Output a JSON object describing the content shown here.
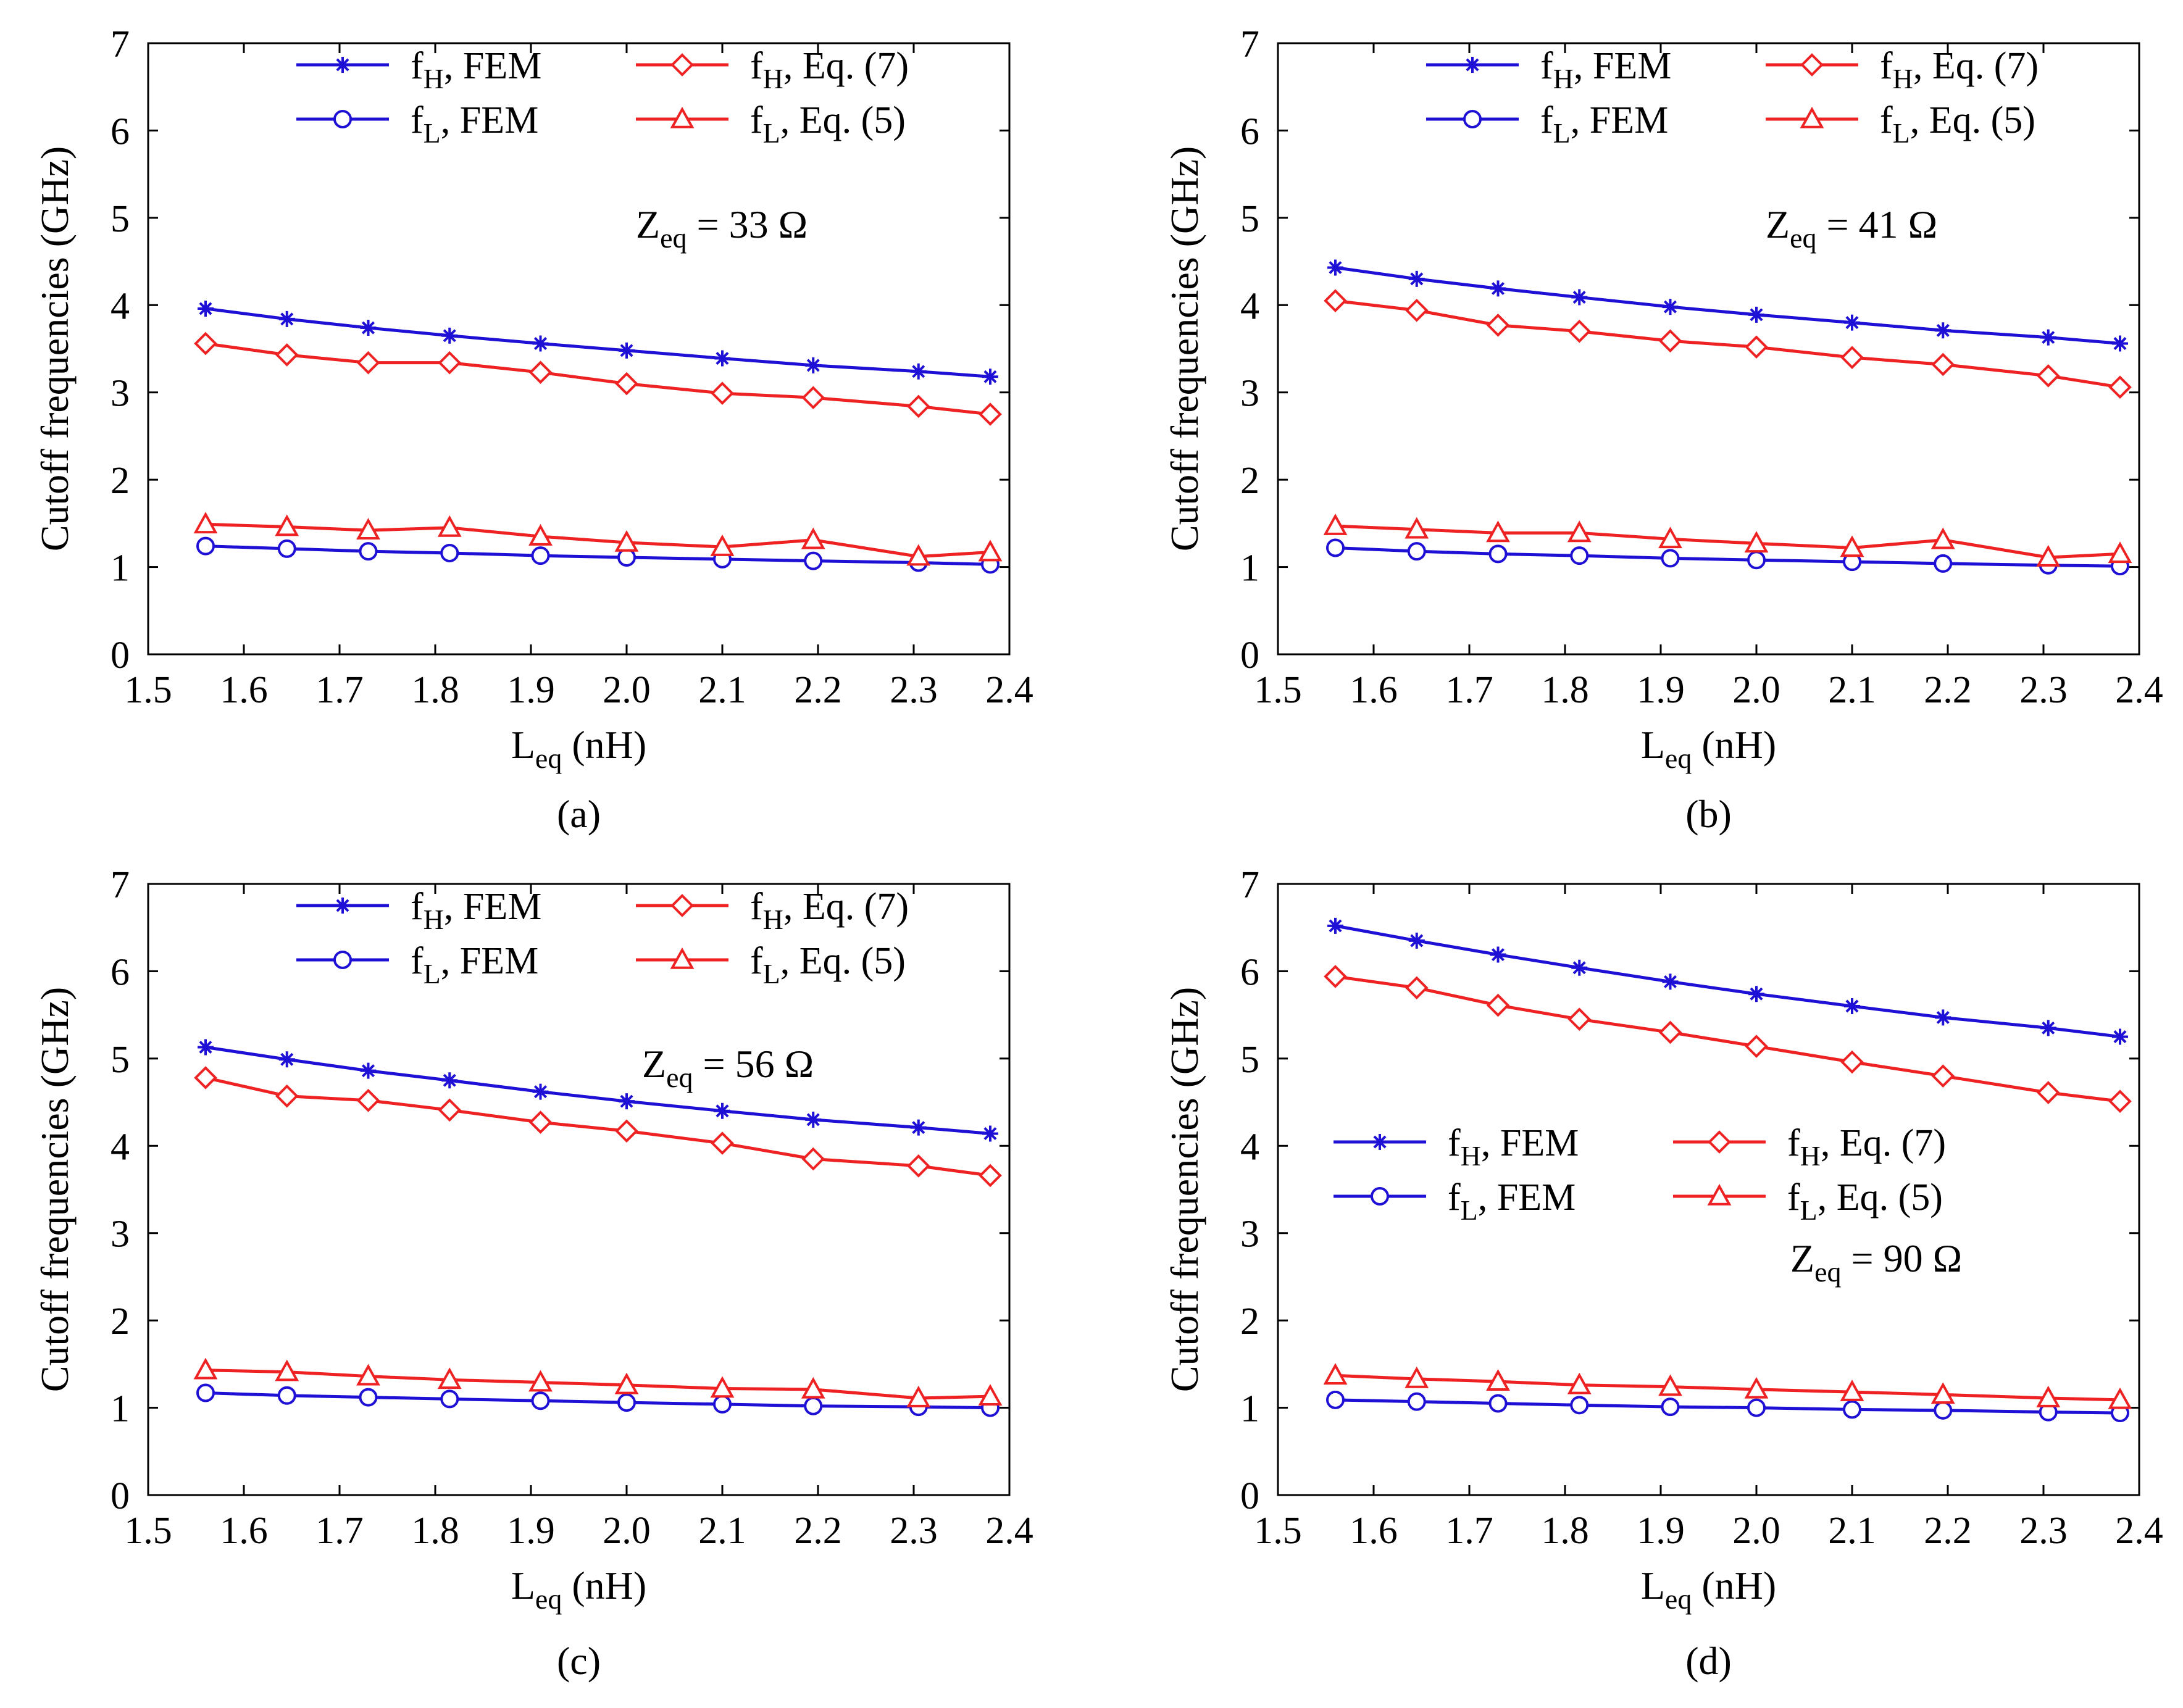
{
  "figure": {
    "ylabel": "Cutoff  frequencies (GHz)",
    "xlabel_main": "L",
    "xlabel_sub": "eq",
    "xlabel_unit": " (nH)"
  },
  "colors": {
    "fem": "#1f10d6",
    "eq": "#ee2222"
  },
  "legend_text": {
    "fH_FEM": {
      "a": "f",
      "b": "H",
      "c": ", FEM"
    },
    "fL_FEM": {
      "a": "f",
      "b": "L",
      "c": ", FEM"
    },
    "fH_Eq": {
      "a": "f",
      "b": "H",
      "c": ", Eq. (7)"
    },
    "fL_Eq": {
      "a": "f",
      "b": "L",
      "c": ", Eq. (5)"
    }
  },
  "chart_data": [
    {
      "type": "line",
      "panel": "a",
      "caption": "(a)",
      "annotation": {
        "a": "Z",
        "b": "eq",
        "c": " = 33 Ω"
      },
      "xlabel": "Leq (nH)",
      "ylabel": "Cutoff  frequencies (GHz)",
      "xlim": [
        1.5,
        2.4
      ],
      "ylim": [
        0,
        7
      ],
      "xticks": [
        "1.5",
        "1.6",
        "1.7",
        "1.8",
        "1.9",
        "2.0",
        "2.1",
        "2.2",
        "2.3",
        "2.4"
      ],
      "yticks": [
        "0",
        "1",
        "2",
        "3",
        "4",
        "5",
        "6",
        "7"
      ],
      "legend_position": "top",
      "x": [
        1.56,
        1.645,
        1.73,
        1.815,
        1.91,
        2.0,
        2.1,
        2.195,
        2.305,
        2.38
      ],
      "series": [
        {
          "name": "fH, FEM",
          "marker": "star",
          "values": [
            3.96,
            3.84,
            3.74,
            3.65,
            3.56,
            3.48,
            3.39,
            3.31,
            3.24,
            3.18
          ]
        },
        {
          "name": "fL, FEM",
          "marker": "circle",
          "values": [
            1.24,
            1.21,
            1.18,
            1.16,
            1.13,
            1.11,
            1.09,
            1.07,
            1.05,
            1.03
          ]
        },
        {
          "name": "fH, Eq. (7)",
          "marker": "diamond",
          "values": [
            3.56,
            3.43,
            3.34,
            3.34,
            3.23,
            3.1,
            2.99,
            2.94,
            2.84,
            2.75
          ]
        },
        {
          "name": "fL, Eq. (5)",
          "marker": "triangle",
          "values": [
            1.49,
            1.46,
            1.42,
            1.45,
            1.35,
            1.28,
            1.23,
            1.31,
            1.12,
            1.17
          ]
        }
      ]
    },
    {
      "type": "line",
      "panel": "b",
      "caption": "(b)",
      "annotation": {
        "a": "Z",
        "b": "eq",
        "c": " = 41 Ω"
      },
      "xlabel": "Leq (nH)",
      "ylabel": "Cutoff  frequencies (GHz)",
      "xlim": [
        1.5,
        2.4
      ],
      "ylim": [
        0,
        7
      ],
      "xticks": [
        "1.5",
        "1.6",
        "1.7",
        "1.8",
        "1.9",
        "2.0",
        "2.1",
        "2.2",
        "2.3",
        "2.4"
      ],
      "yticks": [
        "0",
        "1",
        "2",
        "3",
        "4",
        "5",
        "6",
        "7"
      ],
      "legend_position": "top",
      "x": [
        1.56,
        1.645,
        1.73,
        1.815,
        1.91,
        2.0,
        2.1,
        2.195,
        2.305,
        2.38
      ],
      "series": [
        {
          "name": "fH, FEM",
          "marker": "star",
          "values": [
            4.43,
            4.3,
            4.19,
            4.09,
            3.98,
            3.89,
            3.8,
            3.71,
            3.63,
            3.56
          ]
        },
        {
          "name": "fL, FEM",
          "marker": "circle",
          "values": [
            1.22,
            1.18,
            1.15,
            1.13,
            1.1,
            1.08,
            1.06,
            1.04,
            1.02,
            1.01
          ]
        },
        {
          "name": "fH, Eq. (7)",
          "marker": "diamond",
          "values": [
            4.05,
            3.94,
            3.77,
            3.7,
            3.59,
            3.52,
            3.4,
            3.32,
            3.19,
            3.06
          ]
        },
        {
          "name": "fL, Eq. (5)",
          "marker": "triangle",
          "values": [
            1.47,
            1.43,
            1.39,
            1.39,
            1.32,
            1.27,
            1.22,
            1.31,
            1.11,
            1.15
          ]
        }
      ]
    },
    {
      "type": "line",
      "panel": "c",
      "caption": "(c)",
      "annotation": {
        "a": "Z",
        "b": "eq",
        "c": " = 56 Ω"
      },
      "xlabel": "Leq (nH)",
      "ylabel": "Cutoff  frequencies (GHz)",
      "xlim": [
        1.5,
        2.4
      ],
      "ylim": [
        0,
        7
      ],
      "xticks": [
        "1.5",
        "1.6",
        "1.7",
        "1.8",
        "1.9",
        "2.0",
        "2.1",
        "2.2",
        "2.3",
        "2.4"
      ],
      "yticks": [
        "0",
        "1",
        "2",
        "3",
        "4",
        "5",
        "6",
        "7"
      ],
      "legend_position": "top",
      "x": [
        1.56,
        1.645,
        1.73,
        1.815,
        1.91,
        2.0,
        2.1,
        2.195,
        2.305,
        2.38
      ],
      "series": [
        {
          "name": "fH, FEM",
          "marker": "star",
          "values": [
            5.13,
            4.99,
            4.86,
            4.75,
            4.62,
            4.51,
            4.4,
            4.3,
            4.21,
            4.14
          ]
        },
        {
          "name": "fL, FEM",
          "marker": "circle",
          "values": [
            1.17,
            1.14,
            1.12,
            1.1,
            1.08,
            1.06,
            1.04,
            1.02,
            1.01,
            1.0
          ]
        },
        {
          "name": "fH, Eq. (7)",
          "marker": "diamond",
          "values": [
            4.78,
            4.57,
            4.52,
            4.41,
            4.27,
            4.17,
            4.03,
            3.85,
            3.77,
            3.66
          ]
        },
        {
          "name": "fL, Eq. (5)",
          "marker": "triangle",
          "values": [
            1.43,
            1.41,
            1.36,
            1.32,
            1.29,
            1.26,
            1.22,
            1.21,
            1.11,
            1.13
          ]
        }
      ]
    },
    {
      "type": "line",
      "panel": "d",
      "caption": "(d)",
      "annotation": {
        "a": "Z",
        "b": "eq",
        "c": " = 90 Ω"
      },
      "xlabel": "Leq (nH)",
      "ylabel": "Cutoff  frequencies (GHz)",
      "xlim": [
        1.5,
        2.4
      ],
      "ylim": [
        0,
        7
      ],
      "xticks": [
        "1.5",
        "1.6",
        "1.7",
        "1.8",
        "1.9",
        "2.0",
        "2.1",
        "2.2",
        "2.3",
        "2.4"
      ],
      "yticks": [
        "0",
        "1",
        "2",
        "3",
        "4",
        "5",
        "6",
        "7"
      ],
      "legend_position": "middle",
      "x": [
        1.56,
        1.645,
        1.73,
        1.815,
        1.91,
        2.0,
        2.1,
        2.195,
        2.305,
        2.38
      ],
      "series": [
        {
          "name": "fH, FEM",
          "marker": "star",
          "values": [
            6.52,
            6.35,
            6.19,
            6.04,
            5.88,
            5.74,
            5.6,
            5.47,
            5.35,
            5.25
          ]
        },
        {
          "name": "fL, FEM",
          "marker": "circle",
          "values": [
            1.09,
            1.07,
            1.05,
            1.03,
            1.01,
            1.0,
            0.98,
            0.97,
            0.95,
            0.94
          ]
        },
        {
          "name": "fH, Eq. (7)",
          "marker": "diamond",
          "values": [
            5.94,
            5.81,
            5.61,
            5.45,
            5.3,
            5.14,
            4.96,
            4.8,
            4.61,
            4.51
          ]
        },
        {
          "name": "fL, Eq. (5)",
          "marker": "triangle",
          "values": [
            1.37,
            1.33,
            1.3,
            1.26,
            1.24,
            1.21,
            1.18,
            1.15,
            1.11,
            1.09
          ]
        }
      ]
    }
  ]
}
